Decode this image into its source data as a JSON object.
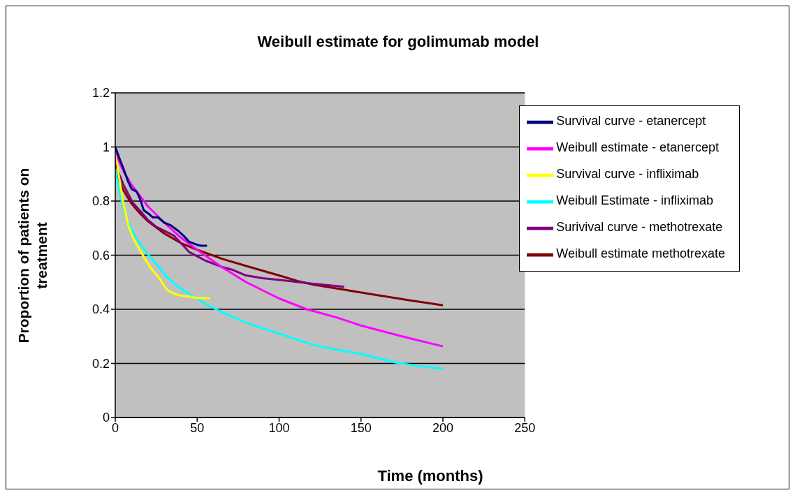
{
  "chart_data": {
    "type": "line",
    "title": "Weibull estimate for golimumab model",
    "xlabel": "Time (months)",
    "ylabel": "Proportion of patients on treatment",
    "xlim": [
      0,
      250
    ],
    "xticks": [
      0,
      50,
      100,
      150,
      200,
      250
    ],
    "ylim": [
      0,
      1.2
    ],
    "yticks": [
      0,
      0.2,
      0.4,
      0.6,
      0.8,
      1,
      1.2
    ],
    "grid": "y",
    "legend": "top right",
    "marker": "none",
    "line_style": "solid",
    "series": [
      {
        "name": "Survival curve - etanercept",
        "color": "#000080",
        "x": [
          0,
          3,
          5,
          8,
          10,
          13,
          15,
          17.4,
          20,
          22.9,
          26,
          30,
          34,
          38.6,
          42,
          45,
          48,
          50.6,
          53,
          56
        ],
        "values": [
          1,
          0.95,
          0.92,
          0.87,
          0.845,
          0.835,
          0.81,
          0.766,
          0.755,
          0.74,
          0.74,
          0.72,
          0.71,
          0.689,
          0.67,
          0.65,
          0.643,
          0.637,
          0.635,
          0.635
        ]
      },
      {
        "name": "Weibull estimate - etanercept",
        "color": "#ff00ff",
        "x": [
          0,
          2,
          5,
          10,
          15,
          20,
          30,
          40,
          50,
          65,
          80,
          100,
          117,
          135,
          150,
          175,
          200
        ],
        "values": [
          1,
          0.95,
          0.91,
          0.86,
          0.82,
          0.78,
          0.72,
          0.665,
          0.62,
          0.556,
          0.5,
          0.44,
          0.4,
          0.37,
          0.34,
          0.3,
          0.263
        ]
      },
      {
        "name": "Survival curve - infliximab",
        "color": "#ffff00",
        "x": [
          0,
          2,
          5,
          8,
          10.9,
          14,
          17.4,
          22,
          26.6,
          30,
          32,
          36,
          40.5,
          45,
          50,
          57.8
        ],
        "values": [
          1,
          0.9,
          0.79,
          0.71,
          0.663,
          0.63,
          0.594,
          0.55,
          0.517,
          0.485,
          0.47,
          0.457,
          0.45,
          0.447,
          0.442,
          0.44
        ]
      },
      {
        "name": "Weibull Estimate - infliximab",
        "color": "#00ffff",
        "x": [
          0,
          2,
          5,
          8.1,
          12,
          16,
          20.1,
          26,
          32,
          38,
          45,
          55,
          65.4,
          80,
          100,
          121,
          140,
          150,
          170.7,
          185,
          200
        ],
        "values": [
          0.92,
          0.85,
          0.77,
          0.72,
          0.67,
          0.635,
          0.603,
          0.56,
          0.517,
          0.485,
          0.457,
          0.42,
          0.388,
          0.35,
          0.31,
          0.268,
          0.245,
          0.235,
          0.204,
          0.19,
          0.18
        ]
      },
      {
        "name": "Surivival curve - methotrexate",
        "color": "#800080",
        "x": [
          0,
          1,
          5,
          10.9,
          15,
          20,
          25,
          30,
          35.8,
          40,
          45,
          55,
          65.4,
          72,
          79.3,
          90,
          102.3,
          120,
          139.7
        ],
        "values": [
          1,
          0.92,
          0.86,
          0.792,
          0.765,
          0.73,
          0.705,
          0.69,
          0.672,
          0.645,
          0.612,
          0.58,
          0.556,
          0.545,
          0.526,
          0.515,
          0.507,
          0.495,
          0.483
        ]
      },
      {
        "name": "Weibull estimate methotrexate",
        "color": "#800000",
        "x": [
          0,
          2,
          5,
          10,
          15,
          20,
          30,
          40,
          50,
          65.4,
          80,
          100,
          111.6,
          121,
          140,
          160,
          180,
          200
        ],
        "values": [
          0.93,
          0.88,
          0.84,
          0.79,
          0.755,
          0.725,
          0.68,
          0.645,
          0.62,
          0.586,
          0.56,
          0.525,
          0.504,
          0.491,
          0.472,
          0.452,
          0.433,
          0.415
        ]
      }
    ]
  }
}
